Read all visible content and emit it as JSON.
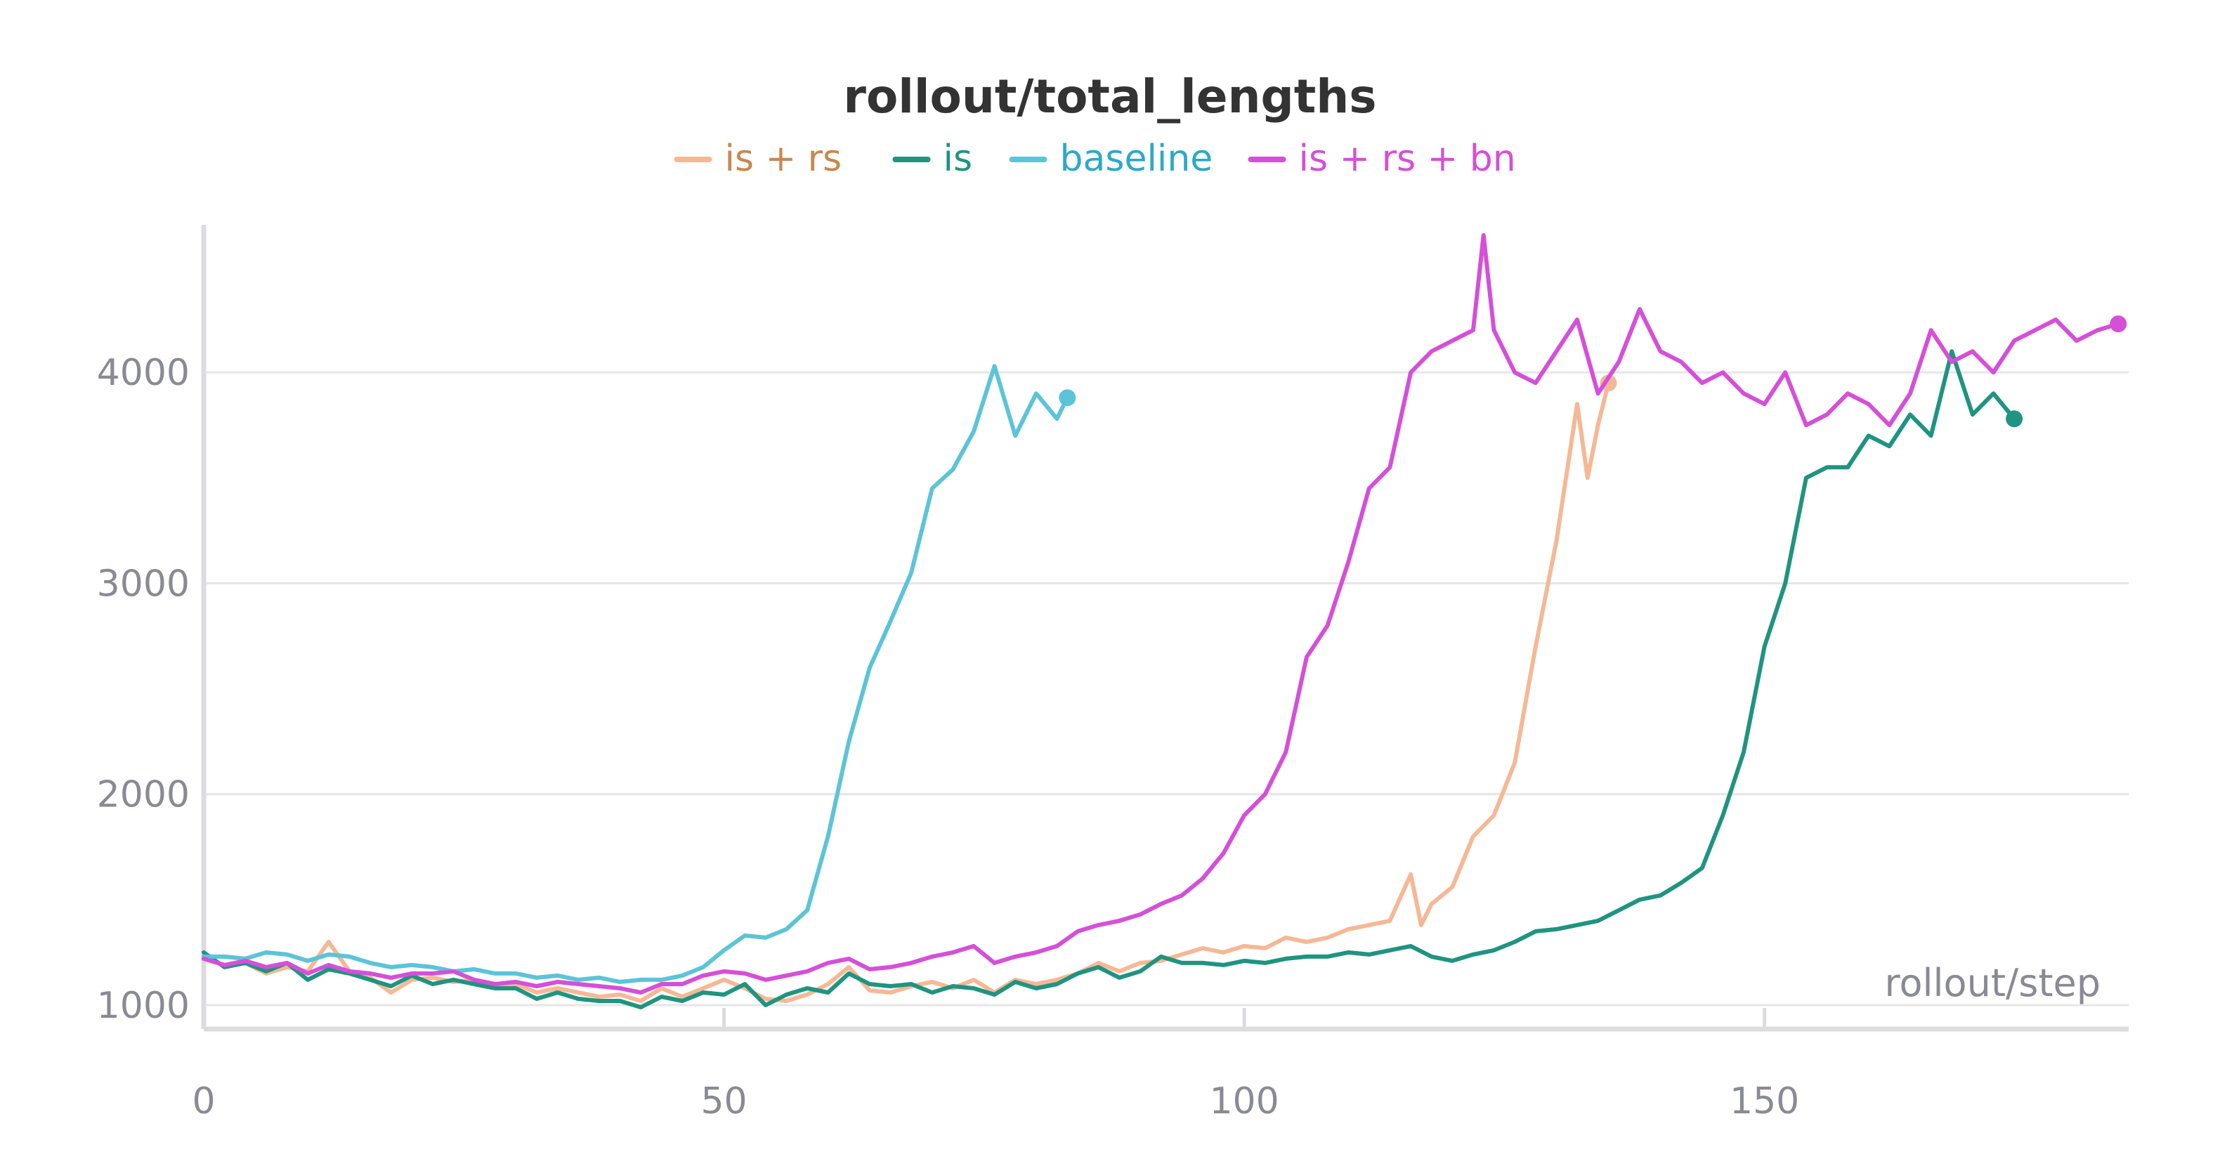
{
  "chart_data": {
    "type": "line",
    "title": "rollout/total_lengths",
    "xlabel": "rollout/step",
    "ylabel": "",
    "xlim": [
      0,
      185
    ],
    "ylim": [
      920,
      4700
    ],
    "xticks": [
      0,
      50,
      100,
      150
    ],
    "yticks": [
      1000,
      2000,
      3000,
      4000
    ],
    "grid": true,
    "legend_position": "top-center",
    "series": [
      {
        "name": "is + rs",
        "color": "#f5b896",
        "label_color": "#c9874f",
        "x": [
          0,
          2,
          4,
          6,
          8,
          10,
          12,
          14,
          16,
          18,
          20,
          22,
          24,
          26,
          28,
          30,
          32,
          34,
          36,
          38,
          40,
          42,
          44,
          46,
          48,
          50,
          52,
          54,
          56,
          58,
          60,
          62,
          64,
          66,
          68,
          70,
          72,
          74,
          76,
          78,
          80,
          82,
          84,
          86,
          88,
          90,
          92,
          94,
          96,
          98,
          100,
          102,
          104,
          106,
          108,
          110,
          112,
          114,
          116,
          117,
          118,
          120,
          122,
          124,
          126,
          128,
          130,
          132,
          133,
          134,
          135
        ],
        "y": [
          1220,
          1190,
          1200,
          1150,
          1180,
          1160,
          1300,
          1160,
          1130,
          1060,
          1120,
          1130,
          1110,
          1120,
          1100,
          1100,
          1060,
          1080,
          1060,
          1040,
          1050,
          1020,
          1080,
          1040,
          1080,
          1120,
          1080,
          1030,
          1020,
          1050,
          1100,
          1180,
          1070,
          1060,
          1090,
          1110,
          1080,
          1120,
          1060,
          1120,
          1100,
          1120,
          1150,
          1200,
          1160,
          1200,
          1210,
          1240,
          1270,
          1250,
          1280,
          1270,
          1320,
          1300,
          1320,
          1360,
          1380,
          1400,
          1620,
          1380,
          1480,
          1560,
          1800,
          1900,
          2150,
          2700,
          3200,
          3850,
          3500,
          3750,
          3950
        ]
      },
      {
        "name": "is",
        "color": "#1f9480",
        "label_color": "#1f9480",
        "x": [
          0,
          2,
          4,
          6,
          8,
          10,
          12,
          14,
          16,
          18,
          20,
          22,
          24,
          26,
          28,
          30,
          32,
          34,
          36,
          38,
          40,
          42,
          44,
          46,
          48,
          50,
          52,
          54,
          56,
          58,
          60,
          62,
          64,
          66,
          68,
          70,
          72,
          74,
          76,
          78,
          80,
          82,
          84,
          86,
          88,
          90,
          92,
          94,
          96,
          98,
          100,
          102,
          104,
          106,
          108,
          110,
          112,
          114,
          116,
          118,
          120,
          122,
          124,
          126,
          128,
          130,
          132,
          134,
          136,
          138,
          140,
          142,
          144,
          146,
          148,
          150,
          152,
          154,
          156,
          158,
          160,
          162,
          164,
          166,
          168,
          170,
          172,
          174
        ],
        "y": [
          1250,
          1180,
          1200,
          1160,
          1200,
          1120,
          1170,
          1150,
          1120,
          1090,
          1140,
          1100,
          1120,
          1100,
          1080,
          1080,
          1030,
          1060,
          1030,
          1020,
          1020,
          990,
          1040,
          1020,
          1060,
          1050,
          1100,
          1000,
          1050,
          1080,
          1060,
          1150,
          1100,
          1090,
          1100,
          1060,
          1090,
          1080,
          1050,
          1110,
          1080,
          1100,
          1150,
          1180,
          1130,
          1160,
          1230,
          1200,
          1200,
          1190,
          1210,
          1200,
          1220,
          1230,
          1230,
          1250,
          1240,
          1260,
          1280,
          1230,
          1210,
          1240,
          1260,
          1300,
          1350,
          1360,
          1380,
          1400,
          1450,
          1500,
          1520,
          1580,
          1650,
          1900,
          2200,
          2700,
          3000,
          3500,
          3550,
          3550,
          3700,
          3650,
          3800,
          3700,
          4100,
          3800,
          3900,
          3780
        ]
      },
      {
        "name": "baseline",
        "color": "#5bc4d8",
        "label_color": "#2ca9c7",
        "x": [
          0,
          2,
          4,
          6,
          8,
          10,
          12,
          14,
          16,
          18,
          20,
          22,
          24,
          26,
          28,
          30,
          32,
          34,
          36,
          38,
          40,
          42,
          44,
          46,
          48,
          50,
          52,
          54,
          56,
          58,
          60,
          62,
          64,
          66,
          68,
          70,
          72,
          74,
          76,
          78,
          80,
          82,
          83
        ],
        "y": [
          1230,
          1230,
          1220,
          1250,
          1240,
          1210,
          1240,
          1230,
          1200,
          1180,
          1190,
          1180,
          1160,
          1170,
          1150,
          1150,
          1130,
          1140,
          1120,
          1130,
          1110,
          1120,
          1120,
          1140,
          1180,
          1260,
          1330,
          1320,
          1360,
          1450,
          1800,
          2250,
          2600,
          2820,
          3050,
          3450,
          3540,
          3720,
          4030,
          3700,
          3900,
          3780,
          3880
        ]
      },
      {
        "name": "is + rs + bn",
        "color": "#d54fd9",
        "label_color": "#d54fd9",
        "x": [
          0,
          2,
          4,
          6,
          8,
          10,
          12,
          14,
          16,
          18,
          20,
          22,
          24,
          26,
          28,
          30,
          32,
          34,
          36,
          38,
          40,
          42,
          44,
          46,
          48,
          50,
          52,
          54,
          56,
          58,
          60,
          62,
          64,
          66,
          68,
          70,
          72,
          74,
          76,
          78,
          80,
          82,
          84,
          86,
          88,
          90,
          92,
          94,
          96,
          98,
          100,
          102,
          104,
          106,
          108,
          110,
          112,
          114,
          116,
          118,
          120,
          122,
          123,
          124,
          126,
          128,
          130,
          132,
          134,
          136,
          138,
          140,
          142,
          144,
          146,
          148,
          150,
          152,
          154,
          156,
          158,
          160,
          162,
          164,
          166,
          168,
          170,
          172,
          174,
          176,
          178,
          180,
          182,
          184
        ],
        "y": [
          1220,
          1190,
          1210,
          1180,
          1200,
          1150,
          1190,
          1160,
          1150,
          1130,
          1150,
          1150,
          1160,
          1120,
          1100,
          1110,
          1090,
          1110,
          1100,
          1090,
          1080,
          1060,
          1100,
          1100,
          1140,
          1160,
          1150,
          1120,
          1140,
          1160,
          1200,
          1220,
          1170,
          1180,
          1200,
          1230,
          1250,
          1280,
          1200,
          1230,
          1250,
          1280,
          1350,
          1380,
          1400,
          1430,
          1480,
          1520,
          1600,
          1720,
          1900,
          2000,
          2200,
          2650,
          2800,
          3100,
          3450,
          3550,
          4000,
          4100,
          4150,
          4200,
          4650,
          4200,
          4000,
          3950,
          4100,
          4250,
          3900,
          4050,
          4300,
          4100,
          4050,
          3950,
          4000,
          3900,
          3850,
          4000,
          3750,
          3800,
          3900,
          3850,
          3750,
          3900,
          4200,
          4050,
          4100,
          4000,
          4150,
          4200,
          4250,
          4150,
          4200,
          4230
        ]
      }
    ]
  }
}
